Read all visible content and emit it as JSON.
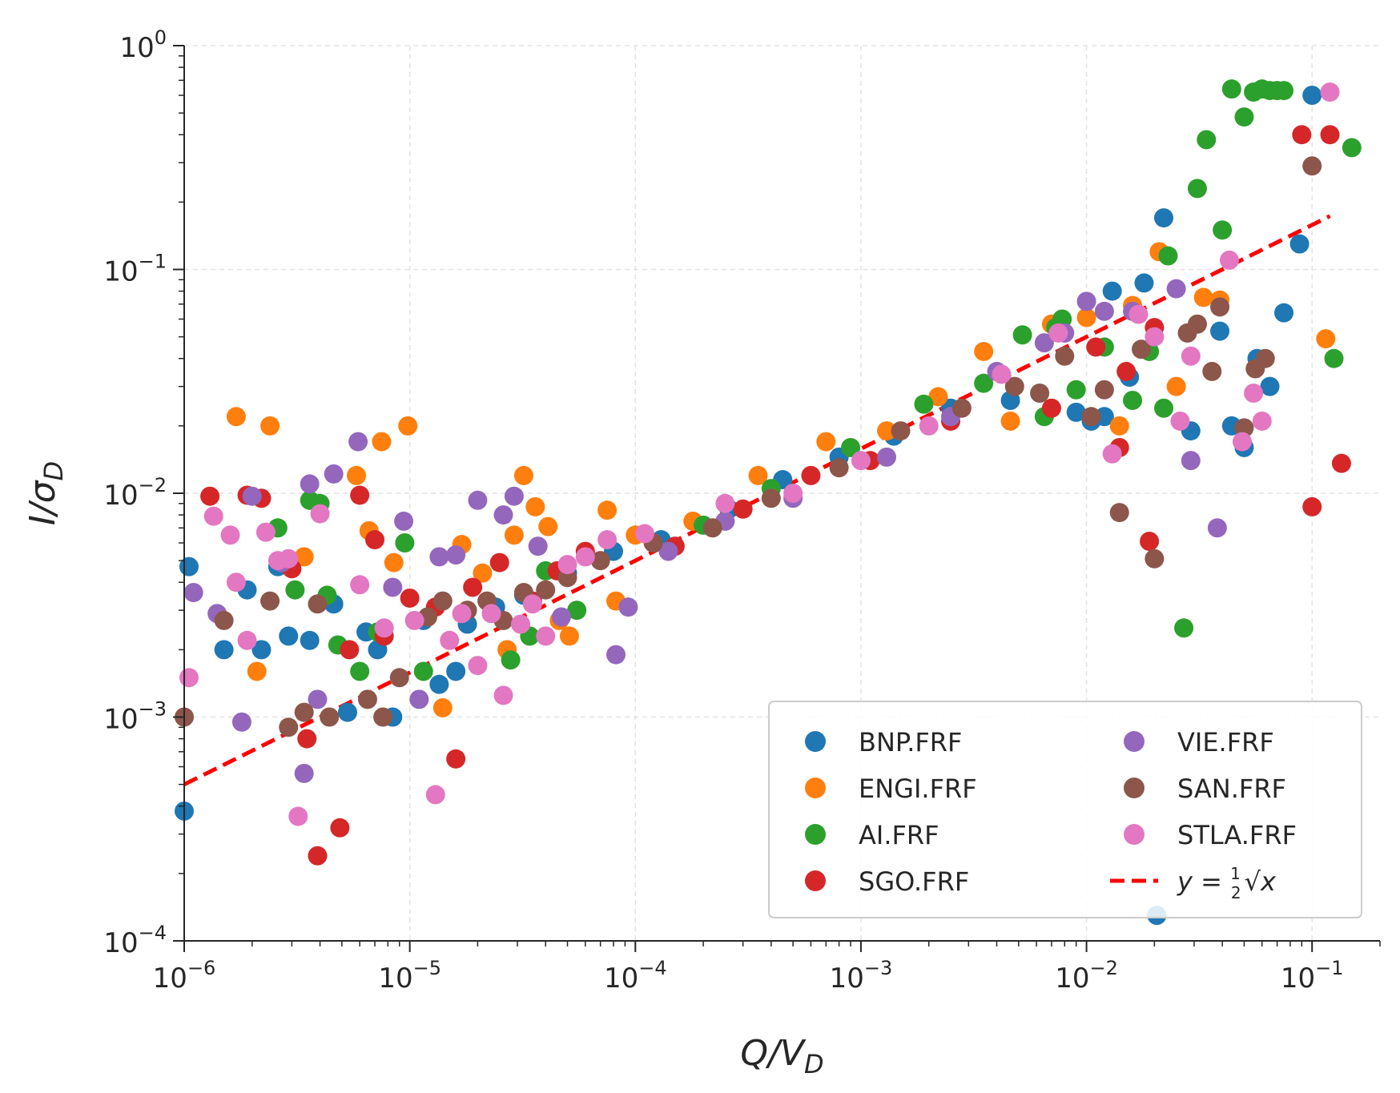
{
  "chart_data": {
    "type": "scatter",
    "title": "",
    "xlabel": "Q/V",
    "xlabel_sub": "D",
    "ylabel": "I/σ",
    "ylabel_sub": "D",
    "xscale": "log",
    "yscale": "log",
    "xlim": [
      1e-06,
      0.2
    ],
    "ylim": [
      0.0001,
      1
    ],
    "x_ticks": [
      {
        "base": "10",
        "exp": "−6"
      },
      {
        "base": "10",
        "exp": "−5"
      },
      {
        "base": "10",
        "exp": "−4"
      },
      {
        "base": "10",
        "exp": "−3"
      },
      {
        "base": "10",
        "exp": "−2"
      },
      {
        "base": "10",
        "exp": "−1"
      }
    ],
    "y_ticks": [
      {
        "base": "10",
        "exp": "−4"
      },
      {
        "base": "10",
        "exp": "−3"
      },
      {
        "base": "10",
        "exp": "−2"
      },
      {
        "base": "10",
        "exp": "−1"
      },
      {
        "base": "10",
        "exp": "0"
      }
    ],
    "grid": true,
    "legend_position": "bottom-right",
    "fit_line": {
      "label_lhs": "y = ",
      "label_frac_num": "1",
      "label_frac_den": "2",
      "label_rhs": "√x",
      "coefficient": 0.5,
      "exponent": 0.5,
      "x_range": [
        1e-06,
        0.12
      ],
      "color": "#ff0000",
      "style": "dashed"
    },
    "series": [
      {
        "name": "BNP.FRF",
        "color": "#1f77b4",
        "points": [
          [
            1e-06,
            0.00038
          ],
          [
            1.05e-06,
            0.0047
          ],
          [
            1.5e-06,
            0.002
          ],
          [
            1.9e-06,
            0.0037
          ],
          [
            2.2e-06,
            0.002
          ],
          [
            2.6e-06,
            0.0047
          ],
          [
            2.9e-06,
            0.0023
          ],
          [
            3.6e-06,
            0.0022
          ],
          [
            4.6e-06,
            0.0032
          ],
          [
            5.3e-06,
            0.00105
          ],
          [
            6.4e-06,
            0.0024
          ],
          [
            7.2e-06,
            0.002
          ],
          [
            8.4e-06,
            0.001
          ],
          [
            1.15e-05,
            0.0027
          ],
          [
            1.35e-05,
            0.0014
          ],
          [
            1.6e-05,
            0.0016
          ],
          [
            1.8e-05,
            0.0026
          ],
          [
            2.4e-05,
            0.0031
          ],
          [
            3.2e-05,
            0.0035
          ],
          [
            5e-05,
            0.0044
          ],
          [
            8e-05,
            0.0055
          ],
          [
            0.00013,
            0.0062
          ],
          [
            0.00026,
            0.0085
          ],
          [
            0.00045,
            0.0115
          ],
          [
            0.0008,
            0.0145
          ],
          [
            0.0014,
            0.018
          ],
          [
            0.0025,
            0.024
          ],
          [
            0.0046,
            0.026
          ],
          [
            0.009,
            0.023
          ],
          [
            0.0105,
            0.021
          ],
          [
            0.012,
            0.022
          ],
          [
            0.013,
            0.08
          ],
          [
            0.0155,
            0.033
          ],
          [
            0.018,
            0.087
          ],
          [
            0.022,
            0.17
          ],
          [
            0.029,
            0.019
          ],
          [
            0.039,
            0.053
          ],
          [
            0.044,
            0.02
          ],
          [
            0.05,
            0.016
          ],
          [
            0.057,
            0.04
          ],
          [
            0.065,
            0.03
          ],
          [
            0.075,
            0.064
          ],
          [
            0.088,
            0.13
          ],
          [
            0.1,
            0.6
          ],
          [
            0.0205,
            0.00013
          ]
        ]
      },
      {
        "name": "ENGI.FRF",
        "color": "#ff7f0e",
        "points": [
          [
            1.7e-06,
            0.022
          ],
          [
            2.1e-06,
            0.0016
          ],
          [
            2.4e-06,
            0.02
          ],
          [
            3.4e-06,
            0.0052
          ],
          [
            5.8e-06,
            0.012
          ],
          [
            6.6e-06,
            0.0068
          ],
          [
            7.5e-06,
            0.017
          ],
          [
            8.5e-06,
            0.0049
          ],
          [
            9.8e-06,
            0.02
          ],
          [
            1.4e-05,
            0.0011
          ],
          [
            1.7e-05,
            0.0059
          ],
          [
            2.1e-05,
            0.0044
          ],
          [
            2.7e-05,
            0.002
          ],
          [
            2.9e-05,
            0.0065
          ],
          [
            3.2e-05,
            0.012
          ],
          [
            3.6e-05,
            0.0087
          ],
          [
            4.1e-05,
            0.0071
          ],
          [
            4.6e-05,
            0.0027
          ],
          [
            5.1e-05,
            0.0023
          ],
          [
            7.5e-05,
            0.0084
          ],
          [
            8.2e-05,
            0.0033
          ],
          [
            0.0001,
            0.0065
          ],
          [
            0.00018,
            0.0075
          ],
          [
            0.00035,
            0.012
          ],
          [
            0.0007,
            0.017
          ],
          [
            0.0013,
            0.019
          ],
          [
            0.0022,
            0.027
          ],
          [
            0.0035,
            0.043
          ],
          [
            0.0046,
            0.021
          ],
          [
            0.007,
            0.057
          ],
          [
            0.01,
            0.061
          ],
          [
            0.014,
            0.02
          ],
          [
            0.016,
            0.069
          ],
          [
            0.021,
            0.12
          ],
          [
            0.025,
            0.03
          ],
          [
            0.033,
            0.075
          ],
          [
            0.039,
            0.073
          ],
          [
            0.115,
            0.049
          ]
        ]
      },
      {
        "name": "AI.FRF",
        "color": "#2ca02c",
        "points": [
          [
            2.6e-06,
            0.007
          ],
          [
            3.1e-06,
            0.0037
          ],
          [
            3.6e-06,
            0.0093
          ],
          [
            4e-06,
            0.009
          ],
          [
            4.3e-06,
            0.0035
          ],
          [
            4.8e-06,
            0.0021
          ],
          [
            6e-06,
            0.0016
          ],
          [
            7.2e-06,
            0.0024
          ],
          [
            9.5e-06,
            0.006
          ],
          [
            1.15e-05,
            0.0016
          ],
          [
            2.8e-05,
            0.0018
          ],
          [
            3.4e-05,
            0.0023
          ],
          [
            4e-05,
            0.0045
          ],
          [
            5.5e-05,
            0.003
          ],
          [
            0.0002,
            0.0072
          ],
          [
            0.0004,
            0.0105
          ],
          [
            0.0009,
            0.016
          ],
          [
            0.0019,
            0.025
          ],
          [
            0.0035,
            0.031
          ],
          [
            0.0052,
            0.051
          ],
          [
            0.0065,
            0.022
          ],
          [
            0.0073,
            0.055
          ],
          [
            0.0078,
            0.06
          ],
          [
            0.009,
            0.029
          ],
          [
            0.012,
            0.045
          ],
          [
            0.016,
            0.026
          ],
          [
            0.019,
            0.043
          ],
          [
            0.023,
            0.115
          ],
          [
            0.022,
            0.024
          ],
          [
            0.027,
            0.0025
          ],
          [
            0.031,
            0.23
          ],
          [
            0.034,
            0.38
          ],
          [
            0.04,
            0.15
          ],
          [
            0.044,
            0.64
          ],
          [
            0.05,
            0.48
          ],
          [
            0.055,
            0.62
          ],
          [
            0.06,
            0.64
          ],
          [
            0.065,
            0.63
          ],
          [
            0.07,
            0.63
          ],
          [
            0.075,
            0.63
          ],
          [
            0.125,
            0.04
          ],
          [
            0.15,
            0.35
          ]
        ]
      },
      {
        "name": "SGO.FRF",
        "color": "#d62728",
        "points": [
          [
            1.3e-06,
            0.0097
          ],
          [
            1.9e-06,
            0.0098
          ],
          [
            2.2e-06,
            0.0095
          ],
          [
            3e-06,
            0.0046
          ],
          [
            3.5e-06,
            0.0008
          ],
          [
            3.9e-06,
            0.00024
          ],
          [
            4.9e-06,
            0.00032
          ],
          [
            5.4e-06,
            0.002
          ],
          [
            6e-06,
            0.0098
          ],
          [
            7e-06,
            0.0062
          ],
          [
            7.7e-06,
            0.0023
          ],
          [
            1e-05,
            0.0034
          ],
          [
            1.3e-05,
            0.0031
          ],
          [
            1.6e-05,
            0.00065
          ],
          [
            1.9e-05,
            0.0038
          ],
          [
            2.5e-05,
            0.0049
          ],
          [
            3.5e-05,
            0.0033
          ],
          [
            4.5e-05,
            0.0045
          ],
          [
            6e-05,
            0.0055
          ],
          [
            0.00015,
            0.0058
          ],
          [
            0.0003,
            0.0085
          ],
          [
            0.0006,
            0.012
          ],
          [
            0.0011,
            0.014
          ],
          [
            0.0025,
            0.021
          ],
          [
            0.007,
            0.024
          ],
          [
            0.011,
            0.045
          ],
          [
            0.014,
            0.016
          ],
          [
            0.019,
            0.0061
          ],
          [
            0.02,
            0.055
          ],
          [
            0.015,
            0.035
          ],
          [
            0.09,
            0.4
          ],
          [
            0.1,
            0.0087
          ],
          [
            0.12,
            0.4
          ],
          [
            0.135,
            0.0136
          ]
        ]
      },
      {
        "name": "VIE.FRF",
        "color": "#9467bd",
        "points": [
          [
            1.1e-06,
            0.0036
          ],
          [
            1.4e-06,
            0.0029
          ],
          [
            1.8e-06,
            0.00095
          ],
          [
            2e-06,
            0.0097
          ],
          [
            2.7e-06,
            0.0049
          ],
          [
            3.4e-06,
            0.00056
          ],
          [
            3.6e-06,
            0.011
          ],
          [
            3.9e-06,
            0.0012
          ],
          [
            4.6e-06,
            0.0122
          ],
          [
            5.9e-06,
            0.017
          ],
          [
            8.4e-06,
            0.0038
          ],
          [
            9.4e-06,
            0.0075
          ],
          [
            1.1e-05,
            0.0012
          ],
          [
            1.35e-05,
            0.0052
          ],
          [
            1.6e-05,
            0.0053
          ],
          [
            2e-05,
            0.0093
          ],
          [
            2.6e-05,
            0.008
          ],
          [
            2.9e-05,
            0.0097
          ],
          [
            3.7e-05,
            0.0058
          ],
          [
            4.7e-05,
            0.0028
          ],
          [
            8.2e-05,
            0.0019
          ],
          [
            9.3e-05,
            0.0031
          ],
          [
            0.00014,
            0.0055
          ],
          [
            0.00025,
            0.0075
          ],
          [
            0.0005,
            0.0095
          ],
          [
            0.0013,
            0.0145
          ],
          [
            0.0025,
            0.022
          ],
          [
            0.004,
            0.035
          ],
          [
            0.0065,
            0.047
          ],
          [
            0.008,
            0.052
          ],
          [
            0.01,
            0.072
          ],
          [
            0.012,
            0.065
          ],
          [
            0.016,
            0.065
          ],
          [
            0.025,
            0.082
          ],
          [
            0.029,
            0.014
          ],
          [
            0.038,
            0.007
          ]
        ]
      },
      {
        "name": "SAN.FRF",
        "color": "#8c564b",
        "points": [
          [
            1e-06,
            0.001
          ],
          [
            1.5e-06,
            0.0027
          ],
          [
            2.4e-06,
            0.0033
          ],
          [
            2.9e-06,
            0.0009
          ],
          [
            3.4e-06,
            0.00105
          ],
          [
            3.9e-06,
            0.0032
          ],
          [
            4.4e-06,
            0.001
          ],
          [
            6.5e-06,
            0.0012
          ],
          [
            7.6e-06,
            0.001
          ],
          [
            9e-06,
            0.0015
          ],
          [
            1.2e-05,
            0.0028
          ],
          [
            1.4e-05,
            0.0033
          ],
          [
            1.8e-05,
            0.003
          ],
          [
            2.2e-05,
            0.0033
          ],
          [
            2.6e-05,
            0.0027
          ],
          [
            3.2e-05,
            0.0036
          ],
          [
            4e-05,
            0.0037
          ],
          [
            5e-05,
            0.0042
          ],
          [
            7e-05,
            0.005
          ],
          [
            0.00012,
            0.006
          ],
          [
            0.00022,
            0.007
          ],
          [
            0.0004,
            0.0095
          ],
          [
            0.0008,
            0.013
          ],
          [
            0.0015,
            0.019
          ],
          [
            0.0028,
            0.024
          ],
          [
            0.0048,
            0.03
          ],
          [
            0.0062,
            0.028
          ],
          [
            0.008,
            0.041
          ],
          [
            0.0105,
            0.022
          ],
          [
            0.012,
            0.029
          ],
          [
            0.014,
            0.0082
          ],
          [
            0.0175,
            0.044
          ],
          [
            0.02,
            0.0051
          ],
          [
            0.028,
            0.052
          ],
          [
            0.031,
            0.057
          ],
          [
            0.036,
            0.035
          ],
          [
            0.039,
            0.068
          ],
          [
            0.05,
            0.0196
          ],
          [
            0.056,
            0.036
          ],
          [
            0.062,
            0.04
          ],
          [
            0.1,
            0.29
          ]
        ]
      },
      {
        "name": "STLA.FRF",
        "color": "#e377c2",
        "points": [
          [
            1.05e-06,
            0.0015
          ],
          [
            1.35e-06,
            0.0079
          ],
          [
            1.6e-06,
            0.0065
          ],
          [
            1.7e-06,
            0.004
          ],
          [
            1.9e-06,
            0.0022
          ],
          [
            2.3e-06,
            0.0067
          ],
          [
            2.6e-06,
            0.005
          ],
          [
            2.9e-06,
            0.0051
          ],
          [
            3.2e-06,
            0.00036
          ],
          [
            4e-06,
            0.0081
          ],
          [
            6e-06,
            0.0039
          ],
          [
            7.7e-06,
            0.0025
          ],
          [
            1.05e-05,
            0.0027
          ],
          [
            1.3e-05,
            0.00045
          ],
          [
            1.5e-05,
            0.0022
          ],
          [
            1.7e-05,
            0.0029
          ],
          [
            2e-05,
            0.0017
          ],
          [
            2.3e-05,
            0.0029
          ],
          [
            2.6e-05,
            0.00125
          ],
          [
            3.1e-05,
            0.0026
          ],
          [
            3.5e-05,
            0.0032
          ],
          [
            4e-05,
            0.0023
          ],
          [
            5e-05,
            0.0048
          ],
          [
            6e-05,
            0.0052
          ],
          [
            7.5e-05,
            0.0062
          ],
          [
            0.00011,
            0.0066
          ],
          [
            0.00025,
            0.009
          ],
          [
            0.0005,
            0.01
          ],
          [
            0.001,
            0.014
          ],
          [
            0.002,
            0.02
          ],
          [
            0.0042,
            0.034
          ],
          [
            0.0075,
            0.052
          ],
          [
            0.013,
            0.015
          ],
          [
            0.017,
            0.063
          ],
          [
            0.02,
            0.05
          ],
          [
            0.026,
            0.021
          ],
          [
            0.029,
            0.041
          ],
          [
            0.043,
            0.11
          ],
          [
            0.049,
            0.017
          ],
          [
            0.055,
            0.028
          ],
          [
            0.06,
            0.021
          ],
          [
            0.12,
            0.62
          ]
        ]
      }
    ]
  }
}
